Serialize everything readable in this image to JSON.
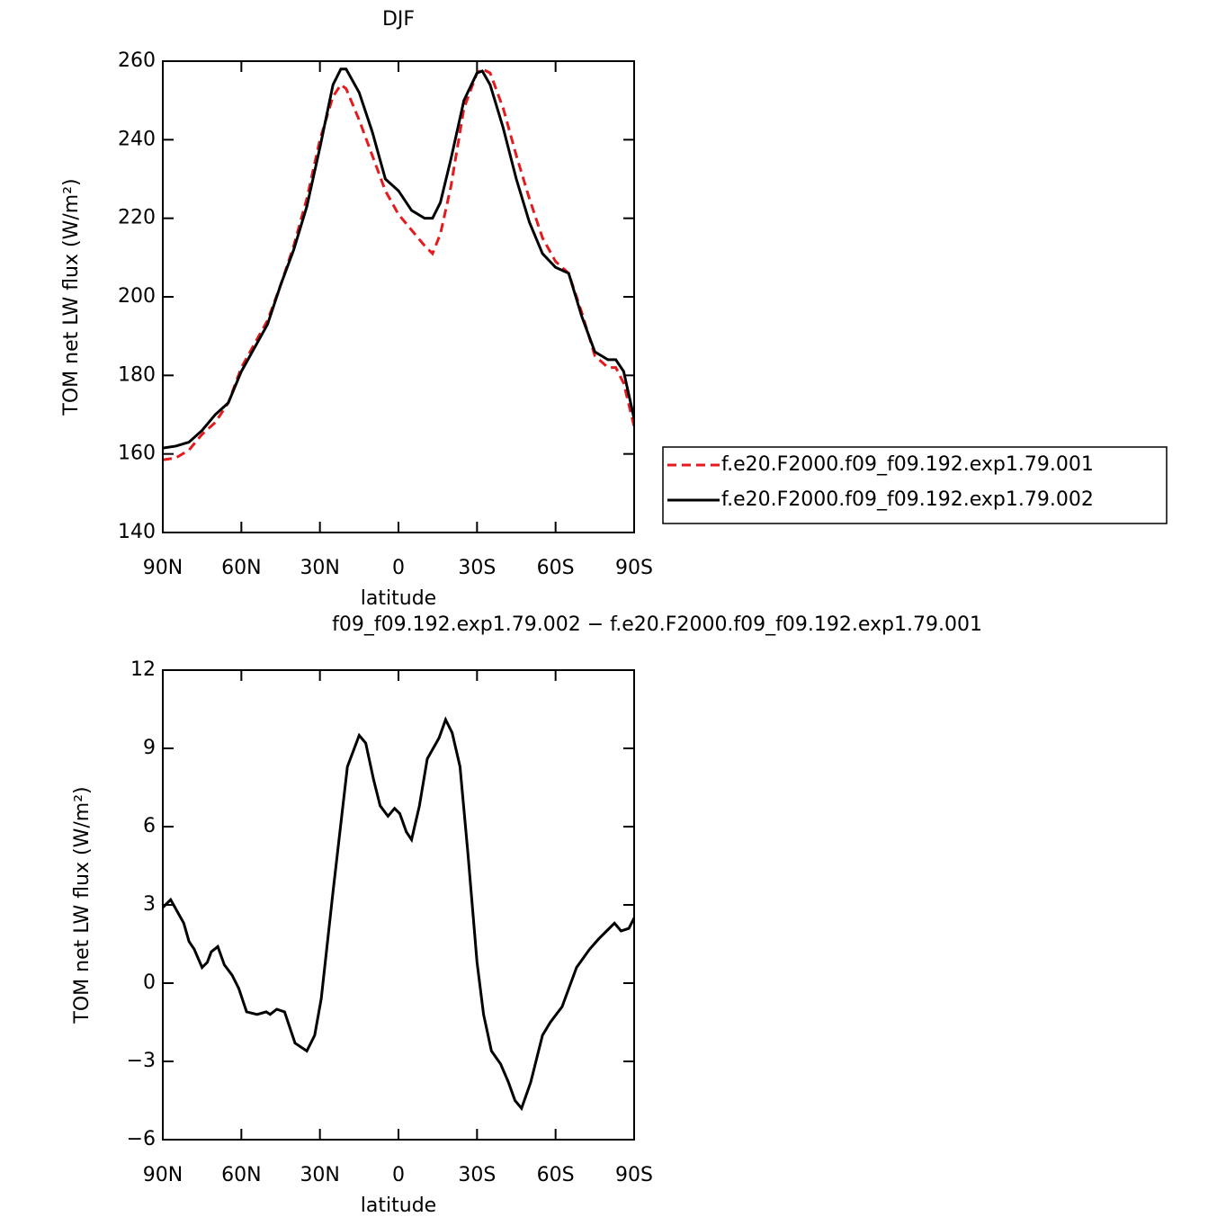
{
  "chart_data": [
    {
      "type": "line",
      "title": "DJF",
      "xlabel": "latitude",
      "ylabel": "TOM net LW flux (W/m²)",
      "x": [
        90,
        85,
        80,
        75,
        70,
        65,
        60,
        55,
        50,
        45,
        40,
        35,
        30,
        25,
        22,
        20,
        15,
        10,
        5,
        0,
        -5,
        -10,
        -13,
        -16,
        -20,
        -25,
        -30,
        -32,
        -35,
        -40,
        -45,
        -50,
        -55,
        -60,
        -65,
        -70,
        -75,
        -80,
        -83,
        -86,
        -90
      ],
      "xlim": [
        90,
        -90
      ],
      "xticks": [
        {
          "value": 90,
          "label": "90N"
        },
        {
          "value": 60,
          "label": "60N"
        },
        {
          "value": 30,
          "label": "30N"
        },
        0,
        {
          "value": -30,
          "label": "30S"
        },
        {
          "value": -60,
          "label": "60S"
        },
        {
          "value": -90,
          "label": "90S"
        }
      ],
      "ylim": [
        140,
        260
      ],
      "yticks": [
        140,
        160,
        180,
        200,
        220,
        240,
        260
      ],
      "legend": "right",
      "series": [
        {
          "name": "f.e20.F2000.f09_f09.192.exp1.79.001",
          "color": "#e41a1c",
          "linestyle": "dashed",
          "values": [
            158.5,
            159,
            161,
            165,
            168,
            173,
            182,
            188,
            194,
            203,
            213,
            225,
            240,
            251,
            254,
            253,
            245,
            236,
            227,
            221,
            217,
            213,
            211,
            216,
            228,
            248,
            257,
            258,
            257,
            248,
            236,
            225,
            215,
            209,
            206,
            196,
            185,
            182,
            182,
            178,
            167
          ]
        },
        {
          "name": "f.e20.F2000.f09_f09.192.exp1.79.002",
          "color": "#000000",
          "linestyle": "solid",
          "values": [
            161.5,
            162,
            163,
            166,
            170,
            173,
            181,
            187,
            193,
            203,
            212,
            223,
            238,
            254,
            258,
            258,
            252,
            242,
            230,
            227,
            222,
            220,
            220,
            224,
            235,
            250,
            257,
            257.5,
            254,
            243,
            230,
            219,
            211,
            207.5,
            206,
            195,
            186,
            184,
            184,
            181,
            169
          ]
        }
      ]
    },
    {
      "type": "line",
      "title": "f09_f09.192.exp1.79.002 − f.e20.F2000.f09_f09.192.exp1.79.001",
      "xlabel": "latitude",
      "ylabel": "TOM net LW flux (W/m²)",
      "x": [
        90,
        87,
        82,
        80,
        78,
        75,
        73,
        71.5,
        69,
        66.5,
        63.5,
        61,
        58,
        54,
        50.5,
        49,
        46.5,
        43.5,
        39.5,
        35,
        32,
        29.5,
        25,
        19.5,
        15,
        12.5,
        9.5,
        7,
        4,
        1.5,
        -0.5,
        -3,
        -5,
        -8,
        -11,
        -15.5,
        -18,
        -20.5,
        -23.5,
        -26.5,
        -30,
        -32.5,
        -35.5,
        -39,
        -42,
        -44.5,
        -47,
        -50.5,
        -55,
        -58,
        -62.5,
        -68,
        -73,
        -76.5,
        -79.5,
        -82.5,
        -85,
        -88,
        -90
      ],
      "xlim": [
        90,
        -90
      ],
      "xticks": [
        {
          "value": 90,
          "label": "90N"
        },
        {
          "value": 60,
          "label": "60N"
        },
        {
          "value": 30,
          "label": "30N"
        },
        0,
        {
          "value": -30,
          "label": "30S"
        },
        {
          "value": -60,
          "label": "60S"
        },
        {
          "value": -90,
          "label": "90S"
        }
      ],
      "ylim": [
        -6,
        12
      ],
      "yticks": [
        {
          "value": -6,
          "label": "−6"
        },
        {
          "value": -3,
          "label": "−3"
        },
        0,
        3,
        6,
        9,
        12
      ],
      "series": [
        {
          "color": "#000000",
          "linestyle": "solid",
          "values": [
            2.9,
            3.2,
            2.3,
            1.6,
            1.3,
            0.6,
            0.8,
            1.2,
            1.4,
            0.7,
            0.3,
            -0.2,
            -1.1,
            -1.2,
            -1.1,
            -1.2,
            -1.0,
            -1.1,
            -2.3,
            -2.6,
            -2.0,
            -0.6,
            3.5,
            8.3,
            9.5,
            9.2,
            7.8,
            6.8,
            6.4,
            6.7,
            6.5,
            5.8,
            5.5,
            6.8,
            8.6,
            9.4,
            10.1,
            9.6,
            8.3,
            5.0,
            0.8,
            -1.2,
            -2.6,
            -3.1,
            -3.8,
            -4.5,
            -4.8,
            -3.8,
            -2.0,
            -1.5,
            -0.9,
            0.6,
            1.3,
            1.7,
            2.0,
            2.3,
            2.0,
            2.1,
            2.5
          ]
        }
      ]
    }
  ]
}
